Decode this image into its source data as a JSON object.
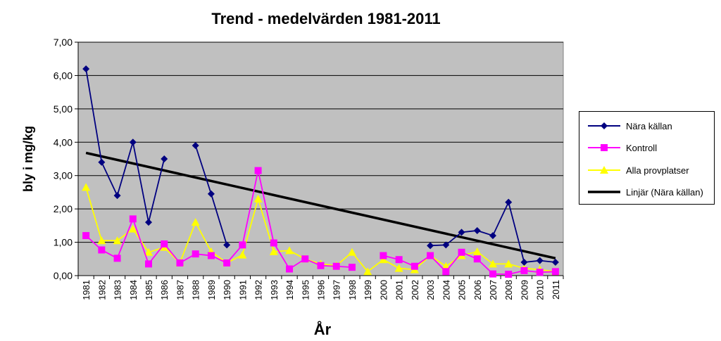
{
  "chart_data": {
    "type": "line",
    "title": "Trend - medelvärden 1981-2011",
    "xlabel": "År",
    "ylabel": "bly i mg/kg",
    "ylim": [
      0,
      7
    ],
    "yticks": [
      "0,00",
      "1,00",
      "2,00",
      "3,00",
      "4,00",
      "5,00",
      "6,00",
      "7,00"
    ],
    "categories": [
      "1981",
      "1982",
      "1983",
      "1984",
      "1985",
      "1986",
      "1987",
      "1988",
      "1989",
      "1990",
      "1991",
      "1992",
      "1993",
      "1994",
      "1995",
      "1996",
      "1997",
      "1998",
      "1999",
      "2000",
      "2001",
      "2002",
      "2003",
      "2004",
      "2005",
      "2006",
      "2007",
      "2008",
      "2009",
      "2010",
      "2011"
    ],
    "grid": true,
    "legend_position": "right",
    "plot_background": "#c0c0c0",
    "series": [
      {
        "name": "Nära källan",
        "color": "#000080",
        "marker": "diamond",
        "values": [
          6.2,
          3.4,
          2.4,
          4.0,
          1.6,
          3.5,
          null,
          3.9,
          2.45,
          0.92,
          null,
          null,
          null,
          null,
          null,
          null,
          null,
          null,
          null,
          null,
          null,
          null,
          0.9,
          0.92,
          1.3,
          1.35,
          1.2,
          2.2,
          0.4,
          0.45,
          0.4
        ]
      },
      {
        "name": "Kontroll",
        "color": "#ff00ff",
        "marker": "square",
        "values": [
          1.2,
          0.77,
          0.52,
          1.7,
          0.35,
          0.95,
          0.38,
          0.65,
          0.6,
          0.38,
          0.92,
          3.15,
          0.98,
          0.2,
          0.5,
          0.3,
          0.28,
          0.25,
          null,
          0.6,
          0.48,
          0.28,
          0.6,
          0.12,
          0.7,
          0.5,
          0.05,
          0.04,
          0.15,
          0.1,
          0.12
        ]
      },
      {
        "name": "Alla provplatser",
        "color": "#ffff00",
        "marker": "triangle",
        "values": [
          2.65,
          1.05,
          1.05,
          1.4,
          0.7,
          0.85,
          0.38,
          1.6,
          0.72,
          0.38,
          0.62,
          2.3,
          0.72,
          0.75,
          0.5,
          0.35,
          0.3,
          0.7,
          0.12,
          0.48,
          0.22,
          0.18,
          0.6,
          0.28,
          0.6,
          0.72,
          0.35,
          0.35,
          0.22,
          0.18,
          0.12
        ]
      },
      {
        "name": "Linjär (Nära källan)",
        "color": "#000000",
        "marker": "none",
        "trend": [
          3.68,
          0.52
        ]
      }
    ]
  }
}
